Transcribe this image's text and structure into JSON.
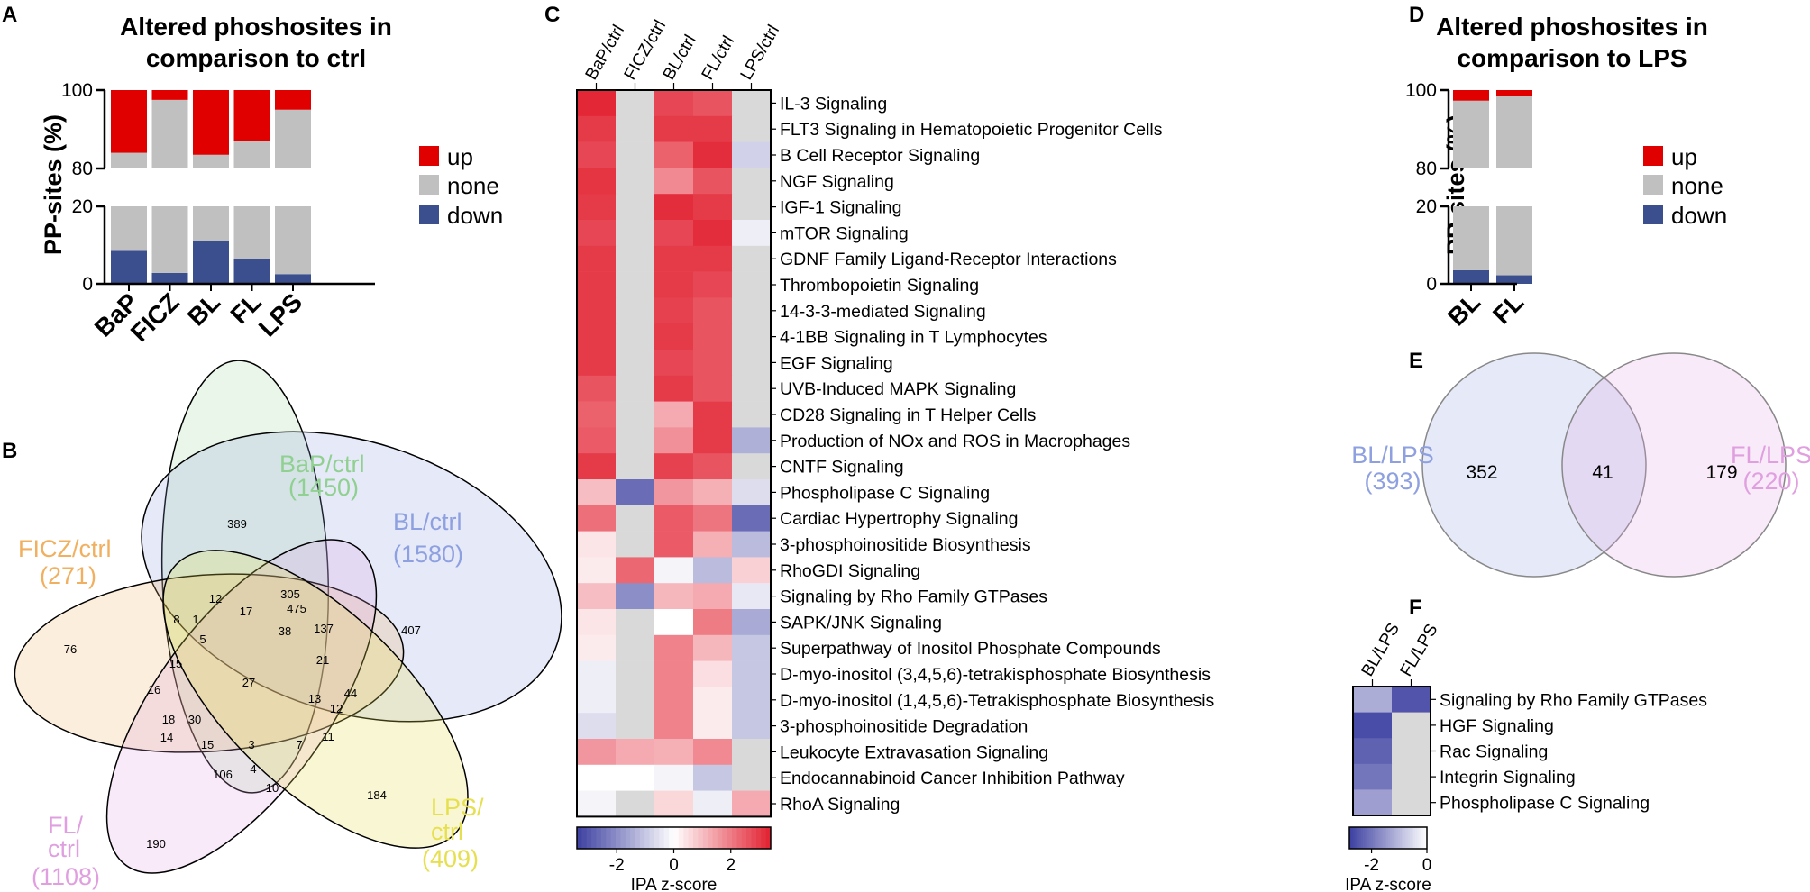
{
  "colors": {
    "up": "#e00000",
    "none": "#c0c0c0",
    "down": "#3b4f8f",
    "neg": "#3c3fa0",
    "pos": "#e02030",
    "neutral": "#d9d9d9"
  },
  "panels": {
    "A": "A",
    "B": "B",
    "C": "C",
    "D": "D",
    "E": "E",
    "F": "F"
  },
  "legend": {
    "up": "up",
    "none": "none",
    "down": "down"
  },
  "chart_data": [
    {
      "panel": "A",
      "type": "bar",
      "title": [
        "Altered phoshosites in",
        "comparison to ctrl"
      ],
      "ylabel": "PP-sites (%)",
      "categories": [
        "BaP",
        "FICZ",
        "BL",
        "FL",
        "LPS"
      ],
      "axis_break": {
        "lower": [
          0,
          20
        ],
        "upper": [
          80,
          100
        ]
      },
      "yticks": [
        0,
        20,
        80,
        100
      ],
      "series": [
        {
          "name": "down",
          "values": [
            8.5,
            2.8,
            11,
            6.5,
            2.5
          ]
        },
        {
          "name": "none",
          "values": [
            75.5,
            94.7,
            72.5,
            80.5,
            92.5
          ]
        },
        {
          "name": "up",
          "values": [
            16,
            2.5,
            16.5,
            13,
            5
          ]
        }
      ]
    },
    {
      "panel": "D",
      "type": "bar",
      "title": [
        "Altered phoshosites in",
        "comparison to LPS"
      ],
      "ylabel": "PP-sites (%)",
      "categories": [
        "BL",
        "FL"
      ],
      "axis_break": {
        "lower": [
          0,
          20
        ],
        "upper": [
          80,
          100
        ]
      },
      "yticks": [
        0,
        20,
        80,
        100
      ],
      "series": [
        {
          "name": "down",
          "values": [
            3.5,
            2.2
          ]
        },
        {
          "name": "none",
          "values": [
            93.8,
            96.2
          ]
        },
        {
          "name": "up",
          "values": [
            2.7,
            1.6
          ]
        }
      ]
    },
    {
      "panel": "B",
      "type": "venn",
      "sets": [
        {
          "name": "BaP/ctrl",
          "count": "(1450)",
          "color": "#90d090"
        },
        {
          "name": "BL/ctrl",
          "count": "(1580)",
          "color": "#8ea0e0"
        },
        {
          "name": "FICZ/ctrl",
          "count": "(271)",
          "color": "#f0b060"
        },
        {
          "name": "FL/",
          "name2": "ctrl",
          "count": "(1108)",
          "color": "#e0a0e0"
        },
        {
          "name": "LPS/",
          "name2": "ctrl",
          "count": "(409)",
          "color": "#e6e050"
        }
      ],
      "regions": [
        "389",
        "407",
        "76",
        "190",
        "184",
        "305",
        "475",
        "12",
        "17",
        "8",
        "1",
        "5",
        "38",
        "137",
        "15",
        "21",
        "16",
        "27",
        "13",
        "44",
        "12",
        "18",
        "30",
        "14",
        "15",
        "3",
        "7",
        "11",
        "106",
        "4",
        "10"
      ]
    },
    {
      "panel": "C",
      "type": "heatmap",
      "columns": [
        "BaP/ctrl",
        "FICZ/ctrl",
        "BL/ctrl",
        "FL/ctrl",
        "LPS/ctrl"
      ],
      "rows": [
        "IL-3 Signaling",
        "FLT3 Signaling in Hematopoietic Progenitor Cells",
        "B Cell Receptor Signaling",
        "NGF Signaling",
        "IGF-1 Signaling",
        "mTOR Signaling",
        "GDNF Family Ligand-Receptor Interactions",
        "Thrombopoietin Signaling",
        "14-3-3-mediated Signaling",
        "4-1BB Signaling in T Lymphocytes",
        "EGF Signaling",
        "UVB-Induced MAPK Signaling",
        "CD28 Signaling in T Helper Cells",
        "Production of NOx and ROS in Macrophages",
        "CNTF Signaling",
        "Phospholipase C Signaling",
        "Cardiac Hypertrophy Signaling",
        "3-phosphoinositide Biosynthesis",
        "RhoGDI Signaling",
        "Signaling by Rho Family GTPases",
        "SAPK/JNK Signaling",
        "Superpathway of Inositol Phosphate Compounds",
        "D-myo-inositol (3,4,5,6)-tetrakisphosphate Biosynthesis",
        "D-myo-inositol (1,4,5,6)-Tetrakisphosphate Biosynthesis",
        "3-phosphoinositide Degradation",
        "Leukocyte Extravasation Signaling",
        "Endocannabinoid Cancer Inhibition Pathway",
        "RhoA Signaling"
      ],
      "values": [
        [
          3.3,
          null,
          2.8,
          2.6,
          null
        ],
        [
          3.0,
          null,
          3.0,
          3.0,
          null
        ],
        [
          2.8,
          null,
          2.4,
          3.2,
          -0.8
        ],
        [
          3.1,
          null,
          1.8,
          2.6,
          null
        ],
        [
          3.0,
          null,
          3.2,
          3.0,
          null
        ],
        [
          2.8,
          null,
          2.8,
          3.2,
          -0.3
        ],
        [
          3.0,
          null,
          3.0,
          3.0,
          null
        ],
        [
          3.0,
          null,
          3.0,
          2.8,
          null
        ],
        [
          3.0,
          null,
          2.9,
          2.6,
          null
        ],
        [
          3.0,
          null,
          3.0,
          2.6,
          null
        ],
        [
          3.0,
          null,
          2.8,
          2.6,
          null
        ],
        [
          2.6,
          null,
          3.0,
          2.6,
          null
        ],
        [
          2.4,
          null,
          1.3,
          3.0,
          null
        ],
        [
          2.5,
          null,
          1.7,
          3.0,
          -1.4
        ],
        [
          3.0,
          null,
          2.9,
          2.6,
          null
        ],
        [
          1.0,
          -2.6,
          1.6,
          1.2,
          -0.6
        ],
        [
          2.2,
          null,
          2.5,
          2.1,
          -2.6
        ],
        [
          0.4,
          null,
          2.5,
          1.2,
          -1.2
        ],
        [
          0.3,
          2.3,
          -0.2,
          -1.2,
          0.7
        ],
        [
          1.0,
          -2.0,
          1.1,
          1.3,
          -0.4
        ],
        [
          0.4,
          null,
          0.0,
          2.0,
          -1.5
        ],
        [
          0.3,
          null,
          1.9,
          1.1,
          -1.0
        ],
        [
          -0.3,
          null,
          1.9,
          0.5,
          -1.0
        ],
        [
          -0.3,
          null,
          1.9,
          0.3,
          -1.0
        ],
        [
          -0.6,
          null,
          1.9,
          0.3,
          -1.0
        ],
        [
          1.6,
          1.3,
          1.2,
          1.8,
          null
        ],
        [
          0.0,
          0.0,
          -0.2,
          -1.0,
          null
        ],
        [
          -0.2,
          null,
          0.6,
          -0.3,
          1.3
        ]
      ],
      "colorbar": {
        "min": -3.4,
        "max": 3.4,
        "ticks": [
          "-2",
          "0",
          "2"
        ],
        "label": "IPA z-score"
      }
    },
    {
      "panel": "E",
      "type": "venn",
      "sets": [
        {
          "name": "BL/LPS",
          "count": "(393)",
          "color": "#8ea0e0"
        },
        {
          "name": "FL/LPS",
          "count": "(220)",
          "color": "#e0a0e0"
        }
      ],
      "regions": [
        "352",
        "41",
        "179"
      ]
    },
    {
      "panel": "F",
      "type": "heatmap",
      "columns": [
        "BL/LPS",
        "FL/LPS"
      ],
      "rows": [
        "Signaling by Rho Family GTPases",
        "HGF Signaling",
        "Rac Signaling",
        "Integrin Signaling",
        "Phospholipase C Signaling"
      ],
      "values": [
        [
          -1.2,
          -2.5
        ],
        [
          -2.6,
          null
        ],
        [
          -2.3,
          null
        ],
        [
          -2.0,
          null
        ],
        [
          -1.4,
          null
        ]
      ],
      "colorbar": {
        "min": -2.8,
        "max": 0,
        "ticks": [
          "-2",
          "0"
        ],
        "label": "IPA z-score"
      }
    }
  ]
}
